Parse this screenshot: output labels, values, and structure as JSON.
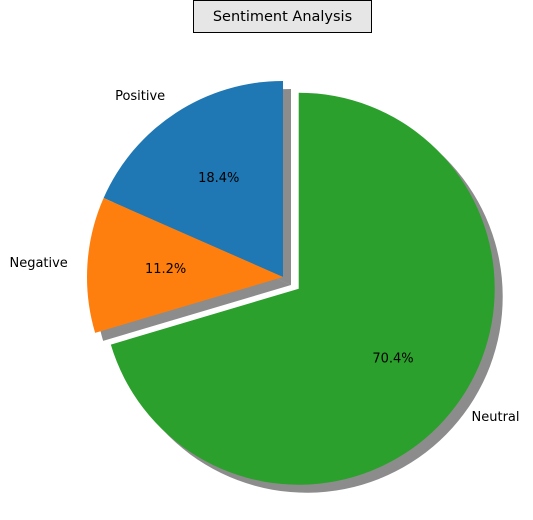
{
  "chart_data": {
    "type": "pie",
    "title": "Sentiment Analysis",
    "slices": [
      {
        "label": "Positive",
        "value": 18.4,
        "pct_label": "18.4%",
        "color": "#1f77b4",
        "explode": 0.0
      },
      {
        "label": "Negative",
        "value": 11.2,
        "pct_label": "11.2%",
        "color": "#ff7f0e",
        "explode": 0.0
      },
      {
        "label": "Neutral",
        "value": 70.4,
        "pct_label": "70.4%",
        "color": "#2ca02c",
        "explode": 0.1
      }
    ],
    "start_angle": 90,
    "direction": "counterclockwise",
    "shadow": true
  }
}
